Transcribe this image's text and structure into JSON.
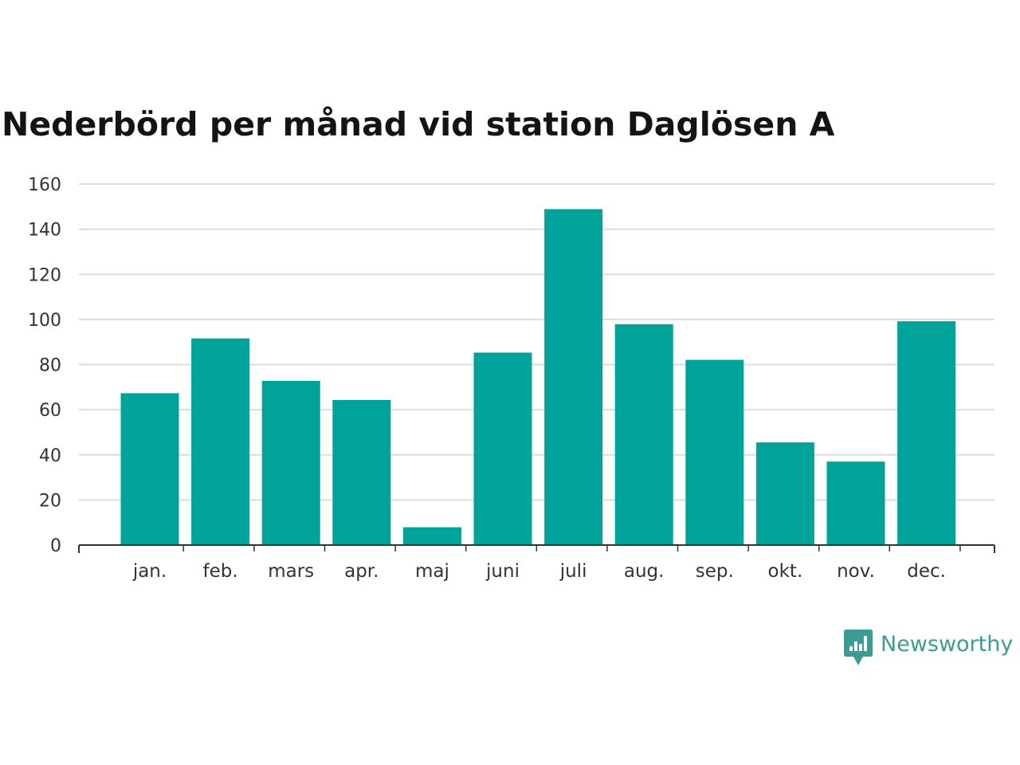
{
  "chart_data": {
    "type": "bar",
    "title": "Nederbörd per månad vid station Daglösen A",
    "xlabel": "",
    "ylabel": "",
    "categories": [
      "jan.",
      "feb.",
      "mars",
      "apr.",
      "maj",
      "juni",
      "juli",
      "aug.",
      "sep.",
      "okt.",
      "nov.",
      "dec."
    ],
    "values": [
      67.3,
      91.6,
      72.8,
      64.3,
      7.9,
      85.3,
      148.9,
      97.9,
      82.1,
      45.5,
      37.0,
      99.2
    ],
    "ylim": [
      0,
      160
    ],
    "yticks": [
      "0",
      "20",
      "40",
      "60",
      "80",
      "100",
      "120",
      "140",
      "160"
    ],
    "bar_color": "#00a39a",
    "grid": true,
    "legend": "none"
  },
  "branding": {
    "name": "Newsworthy",
    "icon": "newsworthy-chart-bubble-icon",
    "color": "#3a9c94"
  }
}
